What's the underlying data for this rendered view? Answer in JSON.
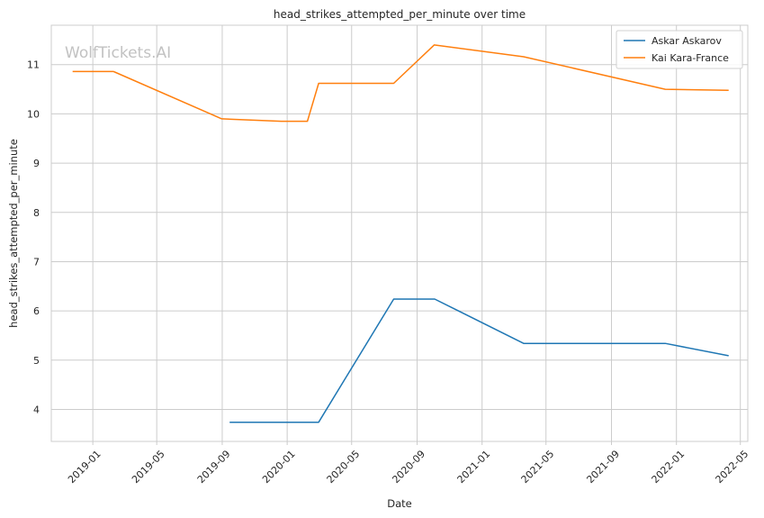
{
  "watermark": "WolfTickets.AI",
  "chart_data": {
    "type": "line",
    "title": "head_strikes_attempted_per_minute over time",
    "xlabel": "Date",
    "ylabel": "head_strikes_attempted_per_minute",
    "xlim": [
      "2018-10-15",
      "2022-05-15"
    ],
    "ylim": [
      3.35,
      11.8
    ],
    "x_ticks": [
      "2019-01",
      "2019-05",
      "2019-09",
      "2020-01",
      "2020-05",
      "2020-09",
      "2021-01",
      "2021-05",
      "2021-09",
      "2022-01",
      "2022-05"
    ],
    "y_ticks": [
      4,
      5,
      6,
      7,
      8,
      9,
      10,
      11
    ],
    "grid": true,
    "legend_position": "top-right",
    "series": [
      {
        "name": "Askar Askarov",
        "color": "#1f77b4",
        "points": [
          {
            "x": "2019-09-15",
            "y": 3.74
          },
          {
            "x": "2020-02-29",
            "y": 3.74
          },
          {
            "x": "2020-07-19",
            "y": 6.24
          },
          {
            "x": "2020-10-04",
            "y": 6.24
          },
          {
            "x": "2021-03-20",
            "y": 5.34
          },
          {
            "x": "2021-12-11",
            "y": 5.34
          },
          {
            "x": "2022-04-09",
            "y": 5.09
          }
        ]
      },
      {
        "name": "Kai Kara-France",
        "color": "#ff7f0e",
        "points": [
          {
            "x": "2018-11-24",
            "y": 10.86
          },
          {
            "x": "2019-02-09",
            "y": 10.86
          },
          {
            "x": "2019-08-31",
            "y": 9.9
          },
          {
            "x": "2019-12-21",
            "y": 9.85
          },
          {
            "x": "2020-02-08",
            "y": 9.85
          },
          {
            "x": "2020-02-29",
            "y": 10.62
          },
          {
            "x": "2020-07-19",
            "y": 10.62
          },
          {
            "x": "2020-10-03",
            "y": 11.4
          },
          {
            "x": "2021-03-20",
            "y": 11.16
          },
          {
            "x": "2021-12-11",
            "y": 10.5
          },
          {
            "x": "2022-04-09",
            "y": 10.48
          }
        ]
      }
    ]
  }
}
